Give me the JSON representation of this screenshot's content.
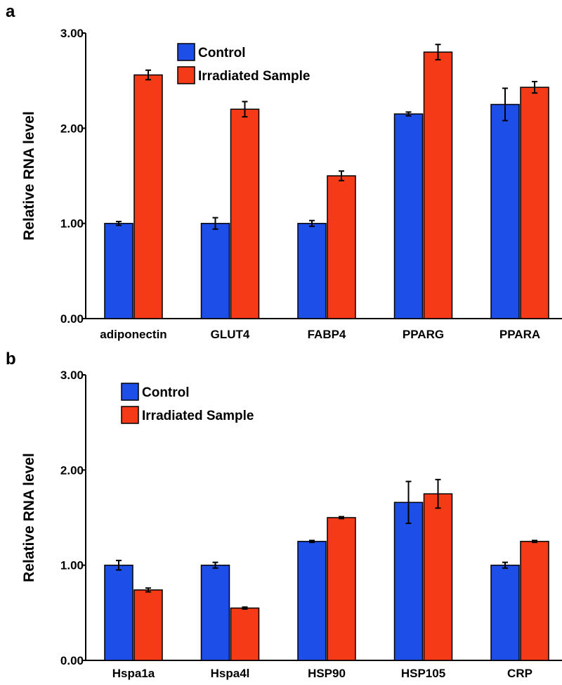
{
  "chart_data": [
    {
      "panel": "a",
      "type": "bar",
      "categories": [
        "adiponectin",
        "GLUT4",
        "FABP4",
        "PPARG",
        "PPARA"
      ],
      "series": [
        {
          "name": "Control",
          "color": "#1e4ee8",
          "values": [
            1.0,
            1.0,
            1.0,
            2.15,
            2.25
          ],
          "errors": [
            0.02,
            0.06,
            0.03,
            0.02,
            0.17
          ]
        },
        {
          "name": "Irradiated Sample",
          "color": "#f53a18",
          "values": [
            2.56,
            2.2,
            1.5,
            2.8,
            2.43
          ],
          "errors": [
            0.05,
            0.08,
            0.05,
            0.08,
            0.06
          ]
        }
      ],
      "yticks": [
        "0.00",
        "1.00",
        "2.00",
        "3.00"
      ],
      "ylim": [
        0,
        3
      ],
      "ylabel": "Relative RNA level",
      "legend_position": "top-left"
    },
    {
      "panel": "b",
      "type": "bar",
      "categories": [
        "Hspa1a",
        "Hspa4l",
        "HSP90",
        "HSP105",
        "CRP"
      ],
      "series": [
        {
          "name": "Control",
          "color": "#1e4ee8",
          "values": [
            1.0,
            1.0,
            1.25,
            1.66,
            1.0
          ],
          "errors": [
            0.05,
            0.03,
            0.01,
            0.22,
            0.03
          ]
        },
        {
          "name": "Irradiated Sample",
          "color": "#f53a18",
          "values": [
            0.74,
            0.55,
            1.5,
            1.75,
            1.25
          ],
          "errors": [
            0.02,
            0.01,
            0.01,
            0.15,
            0.01
          ]
        }
      ],
      "yticks": [
        "0.00",
        "1.00",
        "2.00",
        "3.00"
      ],
      "ylim": [
        0,
        3
      ],
      "ylabel": "Relative RNA level",
      "legend_position": "top-left"
    }
  ]
}
